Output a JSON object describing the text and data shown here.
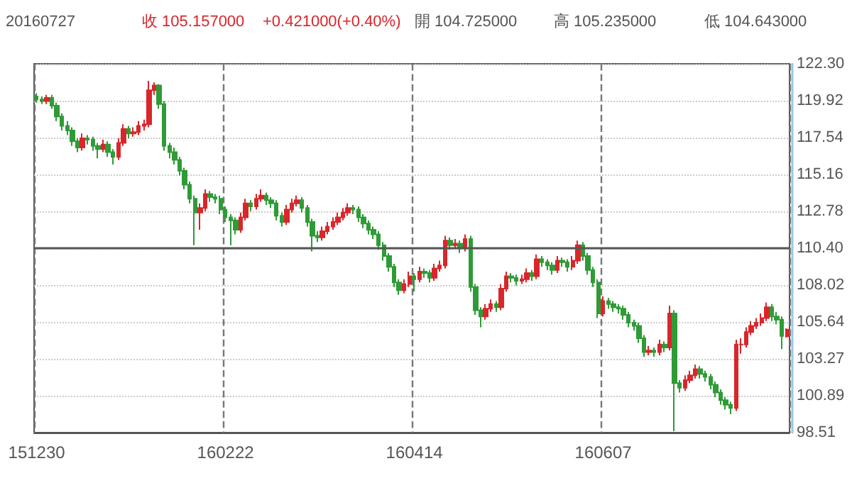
{
  "chart_data": {
    "type": "candlestick",
    "annotations": [
      "20160727",
      "收 105.157000",
      "+0.421000(+0.40%)",
      "開 104.725000",
      "高 105.235000",
      "低 104.643000"
    ],
    "categories": [
      "151230",
      null,
      null,
      null,
      null,
      null,
      null,
      null,
      null,
      null,
      null,
      null,
      null,
      null,
      null,
      null,
      null,
      null,
      null,
      null,
      null,
      null,
      null,
      null,
      null,
      null,
      null,
      null,
      null,
      null,
      null,
      null,
      null,
      null,
      null,
      null,
      null,
      "160222",
      null,
      null,
      null,
      null,
      null,
      null,
      null,
      null,
      null,
      null,
      null,
      null,
      null,
      null,
      null,
      null,
      null,
      null,
      null,
      null,
      null,
      null,
      null,
      null,
      null,
      null,
      null,
      null,
      null,
      null,
      null,
      null,
      null,
      null,
      null,
      null,
      "160414",
      null,
      null,
      null,
      null,
      null,
      null,
      null,
      null,
      null,
      null,
      null,
      null,
      null,
      null,
      null,
      null,
      null,
      null,
      null,
      null,
      null,
      null,
      null,
      null,
      null,
      null,
      null,
      null,
      null,
      null,
      null,
      null,
      null,
      null,
      null,
      null,
      "160607",
      null,
      null,
      null,
      null,
      null,
      null,
      null,
      null,
      null,
      null,
      null,
      null,
      null,
      null,
      null,
      null,
      null,
      null,
      null,
      null,
      null,
      null,
      null,
      null,
      null,
      null,
      null,
      null,
      null,
      null,
      null,
      null,
      null,
      null,
      null,
      null
    ],
    "ohlc": [
      [
        120.2,
        120.4,
        119.8,
        120.0
      ],
      [
        120.0,
        120.2,
        119.7,
        119.9
      ],
      [
        119.9,
        120.3,
        119.7,
        120.1
      ],
      [
        120.1,
        120.3,
        119.4,
        119.6
      ],
      [
        119.6,
        119.8,
        118.6,
        118.9
      ],
      [
        118.9,
        119.1,
        118.0,
        118.3
      ],
      [
        118.3,
        118.6,
        117.7,
        118.0
      ],
      [
        118.0,
        118.2,
        117.0,
        117.3
      ],
      [
        117.3,
        117.5,
        116.6,
        116.9
      ],
      [
        116.9,
        117.8,
        116.7,
        117.5
      ],
      [
        117.5,
        117.7,
        117.1,
        117.4
      ],
      [
        117.4,
        117.6,
        116.7,
        117.0
      ],
      [
        117.0,
        117.2,
        116.2,
        116.8
      ],
      [
        116.8,
        117.4,
        116.6,
        117.1
      ],
      [
        117.1,
        117.3,
        116.3,
        116.6
      ],
      [
        116.6,
        116.8,
        115.8,
        116.3
      ],
      [
        116.3,
        117.5,
        116.1,
        117.2
      ],
      [
        117.2,
        118.4,
        117.0,
        118.1
      ],
      [
        118.1,
        118.3,
        117.5,
        117.8
      ],
      [
        117.8,
        118.2,
        117.6,
        117.9
      ],
      [
        117.9,
        118.6,
        117.7,
        118.3
      ],
      [
        118.3,
        118.7,
        118.0,
        118.4
      ],
      [
        118.4,
        121.2,
        118.2,
        120.6
      ],
      [
        120.6,
        121.1,
        120.3,
        120.9
      ],
      [
        120.9,
        121.0,
        119.4,
        119.7
      ],
      [
        119.7,
        119.9,
        116.7,
        117.0
      ],
      [
        117.0,
        117.2,
        116.2,
        116.6
      ],
      [
        116.6,
        116.9,
        115.8,
        116.1
      ],
      [
        116.1,
        116.3,
        115.1,
        115.4
      ],
      [
        115.4,
        115.6,
        114.2,
        114.5
      ],
      [
        114.5,
        114.7,
        113.3,
        113.6
      ],
      [
        113.6,
        113.8,
        110.6,
        112.7
      ],
      [
        112.7,
        113.3,
        111.6,
        113.0
      ],
      [
        113.0,
        114.2,
        112.8,
        113.9
      ],
      [
        113.9,
        114.1,
        113.4,
        113.7
      ],
      [
        113.7,
        113.9,
        113.3,
        113.6
      ],
      [
        113.6,
        113.8,
        112.6,
        112.9
      ],
      [
        112.9,
        113.1,
        112.1,
        112.4
      ],
      [
        112.4,
        112.6,
        110.6,
        112.2
      ],
      [
        112.2,
        112.4,
        111.3,
        111.6
      ],
      [
        111.6,
        112.7,
        111.4,
        112.4
      ],
      [
        112.4,
        113.6,
        112.2,
        113.3
      ],
      [
        113.3,
        113.5,
        112.8,
        113.1
      ],
      [
        113.1,
        113.9,
        112.9,
        113.6
      ],
      [
        113.6,
        114.2,
        113.4,
        113.8
      ],
      [
        113.8,
        114.0,
        113.2,
        113.5
      ],
      [
        113.5,
        113.7,
        113.0,
        113.3
      ],
      [
        113.3,
        113.5,
        112.2,
        112.5
      ],
      [
        112.5,
        112.7,
        111.8,
        112.1
      ],
      [
        112.1,
        113.2,
        111.9,
        112.9
      ],
      [
        112.9,
        113.6,
        112.7,
        113.3
      ],
      [
        113.3,
        113.8,
        113.1,
        113.5
      ],
      [
        113.5,
        113.7,
        112.7,
        113.0
      ],
      [
        113.0,
        113.2,
        111.8,
        112.1
      ],
      [
        112.1,
        112.3,
        110.2,
        111.2
      ],
      [
        111.2,
        111.5,
        110.8,
        111.1
      ],
      [
        111.1,
        111.8,
        110.9,
        111.5
      ],
      [
        111.5,
        112.1,
        111.3,
        111.8
      ],
      [
        111.8,
        112.4,
        111.6,
        112.1
      ],
      [
        112.1,
        112.7,
        111.9,
        112.4
      ],
      [
        112.4,
        113.0,
        112.2,
        112.7
      ],
      [
        112.7,
        113.3,
        112.5,
        113.0
      ],
      [
        113.0,
        113.2,
        112.6,
        112.9
      ],
      [
        112.9,
        113.1,
        112.1,
        112.4
      ],
      [
        112.4,
        112.6,
        111.7,
        112.0
      ],
      [
        112.0,
        112.2,
        111.3,
        111.6
      ],
      [
        111.6,
        111.8,
        111.0,
        111.3
      ],
      [
        111.3,
        111.5,
        110.3,
        110.6
      ],
      [
        110.6,
        110.8,
        109.6,
        109.9
      ],
      [
        109.9,
        110.1,
        108.9,
        109.2
      ],
      [
        109.2,
        109.4,
        107.9,
        108.2
      ],
      [
        108.2,
        108.4,
        107.4,
        107.7
      ],
      [
        107.7,
        108.4,
        107.5,
        108.1
      ],
      [
        108.1,
        108.9,
        107.9,
        108.6
      ],
      [
        108.6,
        108.8,
        107.6,
        108.4
      ],
      [
        108.4,
        109.2,
        108.2,
        108.9
      ],
      [
        108.9,
        109.1,
        108.5,
        108.8
      ],
      [
        108.8,
        109.0,
        108.2,
        108.5
      ],
      [
        108.5,
        109.4,
        108.3,
        109.1
      ],
      [
        109.1,
        109.6,
        108.9,
        109.3
      ],
      [
        109.3,
        111.2,
        109.1,
        110.9
      ],
      [
        110.9,
        111.1,
        110.3,
        110.6
      ],
      [
        110.6,
        111.0,
        110.4,
        110.7
      ],
      [
        110.7,
        110.9,
        110.1,
        110.4
      ],
      [
        110.4,
        111.3,
        110.2,
        111.0
      ],
      [
        111.0,
        111.2,
        107.6,
        107.9
      ],
      [
        107.9,
        108.1,
        106.1,
        106.4
      ],
      [
        106.4,
        106.6,
        105.3,
        106.0
      ],
      [
        106.0,
        106.8,
        105.8,
        106.5
      ],
      [
        106.5,
        107.1,
        106.3,
        106.8
      ],
      [
        106.8,
        107.0,
        106.3,
        106.6
      ],
      [
        106.6,
        108.1,
        106.4,
        107.8
      ],
      [
        107.8,
        108.9,
        107.6,
        108.6
      ],
      [
        108.6,
        108.8,
        108.2,
        108.5
      ],
      [
        108.5,
        108.7,
        108.0,
        108.3
      ],
      [
        108.3,
        108.7,
        108.1,
        108.4
      ],
      [
        108.4,
        109.1,
        108.2,
        108.8
      ],
      [
        108.8,
        109.0,
        108.3,
        108.6
      ],
      [
        108.6,
        110.0,
        108.4,
        109.7
      ],
      [
        109.7,
        109.9,
        109.2,
        109.5
      ],
      [
        109.5,
        109.7,
        109.0,
        109.3
      ],
      [
        109.3,
        109.5,
        108.7,
        109.0
      ],
      [
        109.0,
        109.9,
        108.8,
        109.6
      ],
      [
        109.6,
        109.8,
        109.2,
        109.5
      ],
      [
        109.5,
        109.7,
        108.9,
        109.2
      ],
      [
        109.2,
        109.9,
        109.0,
        109.6
      ],
      [
        109.6,
        110.9,
        109.4,
        110.6
      ],
      [
        110.6,
        110.8,
        109.6,
        109.9
      ],
      [
        109.9,
        110.1,
        108.7,
        109.0
      ],
      [
        109.0,
        109.2,
        107.9,
        108.2
      ],
      [
        108.2,
        108.4,
        105.9,
        106.2
      ],
      [
        106.2,
        107.3,
        106.0,
        107.0
      ],
      [
        107.0,
        107.2,
        106.5,
        106.8
      ],
      [
        106.8,
        107.0,
        106.3,
        106.6
      ],
      [
        106.6,
        106.8,
        106.2,
        106.5
      ],
      [
        106.5,
        106.7,
        105.8,
        106.1
      ],
      [
        106.1,
        106.3,
        105.3,
        105.6
      ],
      [
        105.6,
        105.8,
        105.1,
        105.4
      ],
      [
        105.4,
        105.6,
        104.3,
        104.6
      ],
      [
        104.6,
        104.8,
        103.4,
        103.7
      ],
      [
        103.7,
        104.1,
        103.5,
        103.8
      ],
      [
        103.8,
        104.0,
        103.4,
        103.7
      ],
      [
        103.7,
        104.5,
        103.5,
        104.2
      ],
      [
        104.2,
        104.4,
        103.7,
        104.0
      ],
      [
        104.0,
        106.7,
        103.8,
        106.2
      ],
      [
        106.2,
        106.4,
        98.6,
        101.7
      ],
      [
        101.7,
        101.9,
        101.1,
        101.4
      ],
      [
        101.4,
        102.2,
        101.2,
        101.9
      ],
      [
        101.9,
        102.5,
        101.7,
        102.2
      ],
      [
        102.2,
        102.9,
        102.0,
        102.6
      ],
      [
        102.6,
        102.8,
        102.0,
        102.3
      ],
      [
        102.3,
        102.5,
        101.8,
        102.1
      ],
      [
        102.1,
        102.3,
        101.3,
        101.6
      ],
      [
        101.6,
        101.8,
        100.8,
        101.1
      ],
      [
        101.1,
        101.3,
        100.3,
        100.6
      ],
      [
        100.6,
        100.8,
        100.0,
        100.3
      ],
      [
        100.3,
        100.5,
        99.7,
        100.1
      ],
      [
        100.1,
        104.5,
        99.9,
        104.2
      ],
      [
        104.2,
        104.6,
        103.6,
        104.2
      ],
      [
        104.2,
        105.3,
        104.0,
        105.0
      ],
      [
        105.0,
        105.7,
        104.8,
        105.4
      ],
      [
        105.4,
        105.9,
        105.2,
        105.6
      ],
      [
        105.6,
        106.2,
        105.4,
        105.9
      ],
      [
        105.9,
        106.9,
        105.7,
        106.6
      ],
      [
        106.6,
        106.8,
        105.7,
        106.0
      ],
      [
        106.0,
        106.3,
        105.5,
        105.8
      ],
      [
        105.8,
        106.0,
        103.9,
        104.74
      ],
      [
        104.725,
        105.235,
        104.643,
        105.157
      ]
    ],
    "ylim": [
      98.51,
      122.3
    ],
    "yticks": [
      {
        "value": 122.3,
        "label": "122.30"
      },
      {
        "value": 119.92,
        "label": "119.92"
      },
      {
        "value": 117.54,
        "label": "117.54"
      },
      {
        "value": 115.16,
        "label": "115.16"
      },
      {
        "value": 112.78,
        "label": "112.78"
      },
      {
        "value": 110.4,
        "label": "110.40"
      },
      {
        "value": 108.02,
        "label": "108.02"
      },
      {
        "value": 105.64,
        "label": "105.64"
      },
      {
        "value": 103.27,
        "label": "103.27"
      },
      {
        "value": 100.89,
        "label": "100.89"
      },
      {
        "value": 98.51,
        "label": "98.51"
      }
    ],
    "ref_lines": [
      {
        "axis": "y",
        "value": 110.4,
        "color": "#555555",
        "line_style": "solid"
      }
    ],
    "grid": true
  }
}
